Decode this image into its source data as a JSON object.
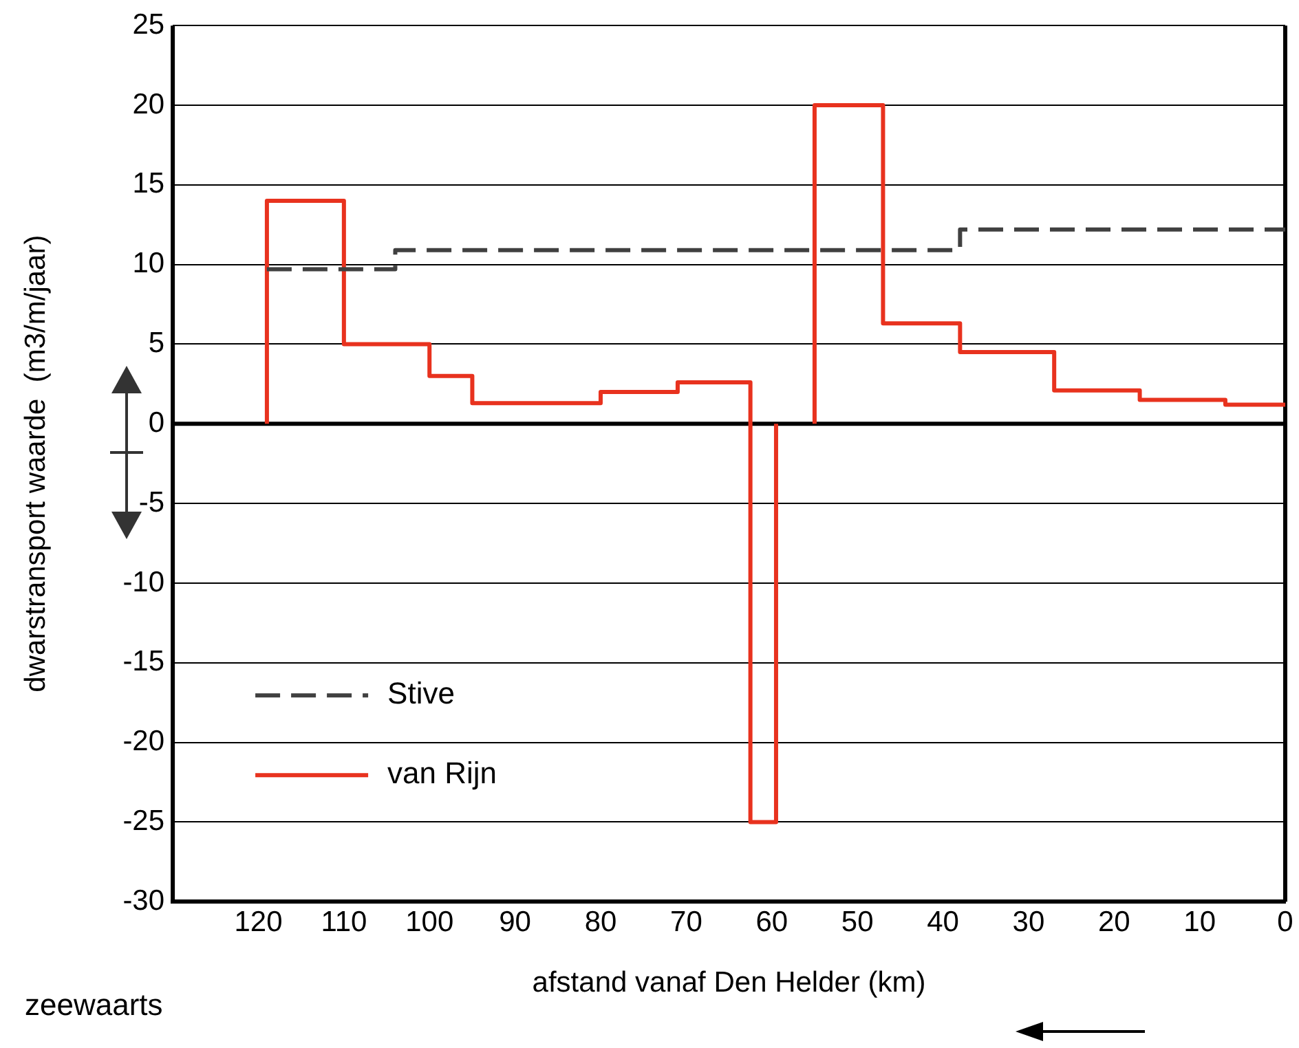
{
  "chart_data": {
    "type": "step",
    "xlabel": "afstand vanaf Den Helder (km)",
    "ylabel": "dwarstransport waarde  (m3/m/jaar)",
    "xlim": [
      130,
      0
    ],
    "xticks": [
      120,
      110,
      100,
      90,
      80,
      70,
      60,
      50,
      40,
      30,
      20,
      10,
      0
    ],
    "ylim": [
      -30,
      25
    ],
    "yticks": [
      -30,
      -25,
      -20,
      -15,
      -10,
      -5,
      0,
      5,
      10,
      15,
      20,
      25
    ],
    "grid": "y",
    "legend": "bottom left",
    "ref_lines": [
      {
        "axis": "y",
        "value": 0,
        "color": "#000000"
      }
    ],
    "annotations": [
      "zeewaarts"
    ],
    "series": [
      {
        "name": "Stive",
        "color": "#404040",
        "line_style": "dashed",
        "x": [
          119,
          104,
          38,
          0
        ],
        "values": [
          9.7,
          10.9,
          12.2,
          12.2
        ]
      },
      {
        "name": "van Rijn",
        "color": "#e8321e",
        "line_style": "solid",
        "x": [
          119,
          119,
          110,
          100,
          95,
          80,
          71,
          62.5,
          59.5,
          57,
          55,
          55,
          47,
          38,
          27,
          17,
          7,
          0
        ],
        "values": [
          0,
          14,
          5,
          3,
          1.3,
          2,
          2.6,
          -25,
          0,
          null,
          0,
          20,
          6.3,
          4.5,
          2.1,
          1.5,
          1.2,
          1.2
        ]
      }
    ]
  }
}
